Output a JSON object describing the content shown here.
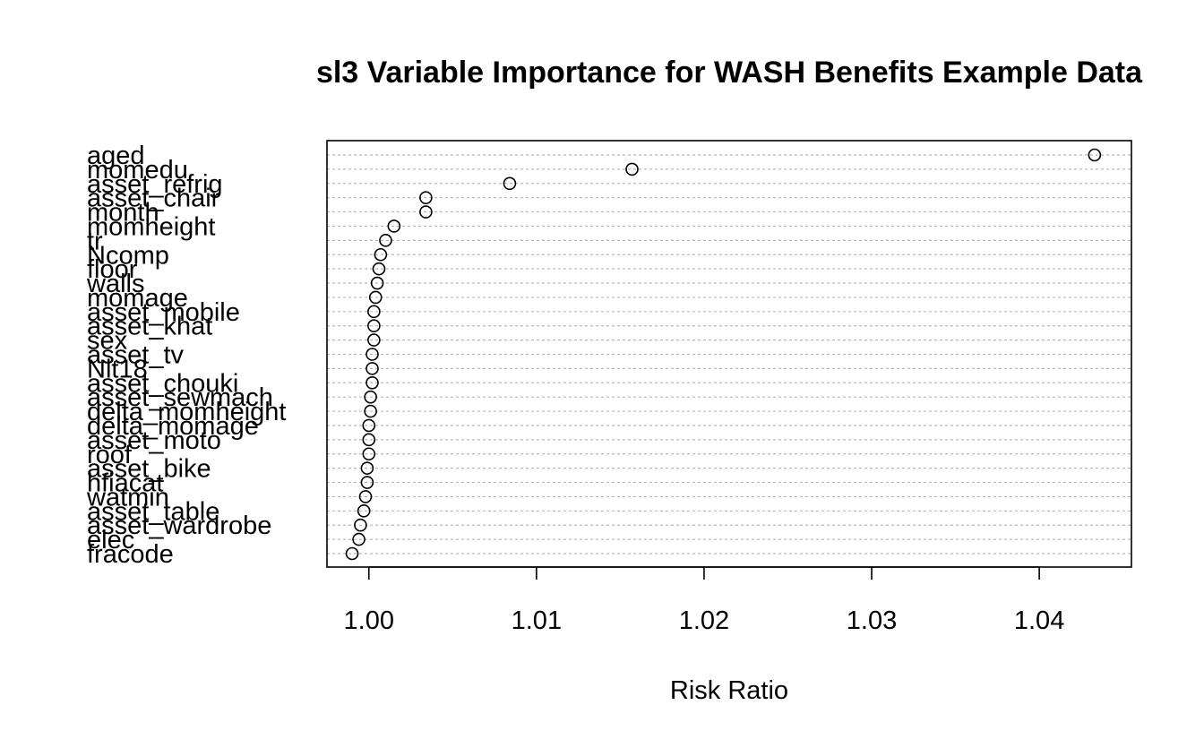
{
  "chart_data": {
    "type": "scatter",
    "title": "sl3 Variable Importance for WASH Benefits Example Data",
    "xlabel": "Risk Ratio",
    "ylabel": "",
    "xlim": [
      0.9975,
      1.0455
    ],
    "x_ticks": [
      1.0,
      1.01,
      1.02,
      1.03,
      1.04
    ],
    "x_tick_labels": [
      "1.00",
      "1.01",
      "1.02",
      "1.03",
      "1.04"
    ],
    "grid": "horizontal dotted lines at each variable",
    "legend": "none",
    "marker": "open circle",
    "categories": [
      "aged",
      "momedu",
      "asset_refrig",
      "asset_chair",
      "month",
      "momheight",
      "tr",
      "Ncomp",
      "floor",
      "walls",
      "momage",
      "asset_mobile",
      "asset_khat",
      "sex",
      "asset_tv",
      "Nlt18",
      "asset_chouki",
      "asset_sewmach",
      "delta_momheight",
      "delta_momage",
      "asset_moto",
      "roof",
      "asset_bike",
      "hfiacat",
      "watmin",
      "asset_table",
      "asset_wardrobe",
      "elec",
      "fracode"
    ],
    "values": [
      1.0433,
      1.0157,
      1.0084,
      1.0034,
      1.0034,
      1.0015,
      1.001,
      1.0007,
      1.0006,
      1.0005,
      1.0004,
      1.0003,
      1.0003,
      1.0003,
      1.0002,
      1.0002,
      1.0002,
      1.0001,
      1.0001,
      1.0,
      1.0,
      1.0,
      0.9999,
      0.9999,
      0.9998,
      0.9997,
      0.9995,
      0.9994,
      0.999
    ]
  }
}
